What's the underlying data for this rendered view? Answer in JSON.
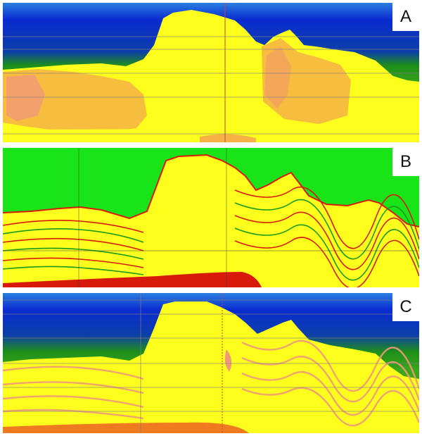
{
  "panels": [
    {
      "id": "a",
      "label": "A"
    },
    {
      "id": "b",
      "label": "B"
    },
    {
      "id": "c",
      "label": "C"
    }
  ],
  "colors": {
    "deep_blue": "#1030d8",
    "green": "#1e8f1a",
    "bright_green": "#18e418",
    "yellow": "#ffff1e",
    "orange": "#f6b244",
    "salmon": "#f09a78",
    "red": "#d81a0a",
    "grid_line": "#808080"
  }
}
